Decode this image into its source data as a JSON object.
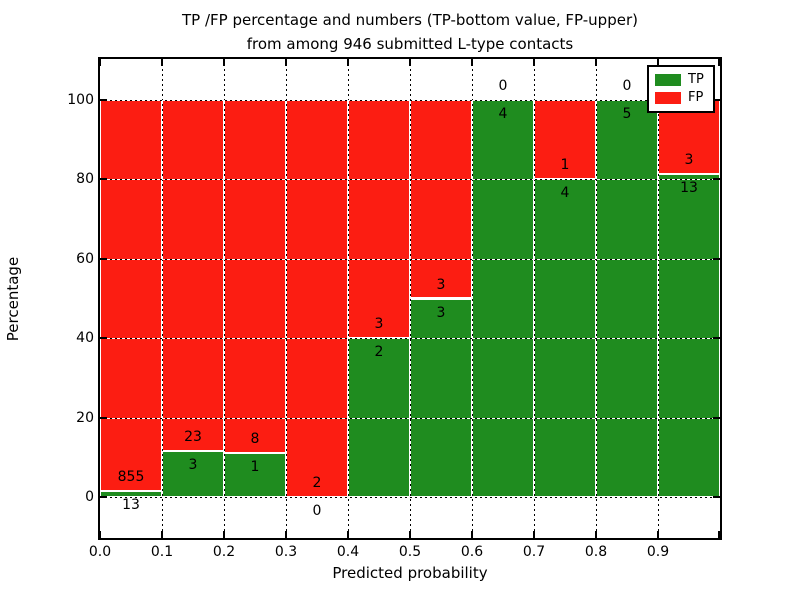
{
  "chart_data": {
    "type": "bar",
    "stacked": true,
    "title_line1": "TP /FP percentage and numbers (TP-bottom value, FP-upper)",
    "title_line2": "from among 946 submitted L-type contacts",
    "xlabel": "Predicted probability",
    "ylabel": "Percentage",
    "x_tick_labels": [
      "0.0",
      "0.1",
      "0.2",
      "0.3",
      "0.4",
      "0.5",
      "0.6",
      "0.7",
      "0.8",
      "0.9"
    ],
    "y_tick_values": [
      0,
      20,
      40,
      60,
      80,
      100
    ],
    "xlim": [
      0.0,
      1.0
    ],
    "ylim": [
      -10.3,
      110.3
    ],
    "bin_width": 0.1,
    "grid": true,
    "grid_style": "dotted",
    "series": [
      {
        "name": "TP",
        "color": "#1f8c1f",
        "counts": [
          13,
          3,
          1,
          0,
          2,
          3,
          4,
          4,
          5,
          13
        ]
      },
      {
        "name": "FP",
        "color": "#fc1d12",
        "counts": [
          855,
          23,
          8,
          2,
          3,
          3,
          0,
          1,
          0,
          3
        ]
      }
    ],
    "tp_percentages": [
      1.5,
      11.5,
      11.1,
      0.0,
      40.0,
      50.0,
      100.0,
      80.0,
      100.0,
      81.3
    ],
    "legend": {
      "position": "upper right",
      "items": [
        {
          "label": "TP",
          "color": "#1f8c1f"
        },
        {
          "label": "FP",
          "color": "#fc1d12"
        }
      ]
    }
  },
  "colors": {
    "tp_green": "#1f8c1f",
    "fp_red": "#fc1d12",
    "grid": "#000000",
    "background": "#ffffff"
  }
}
